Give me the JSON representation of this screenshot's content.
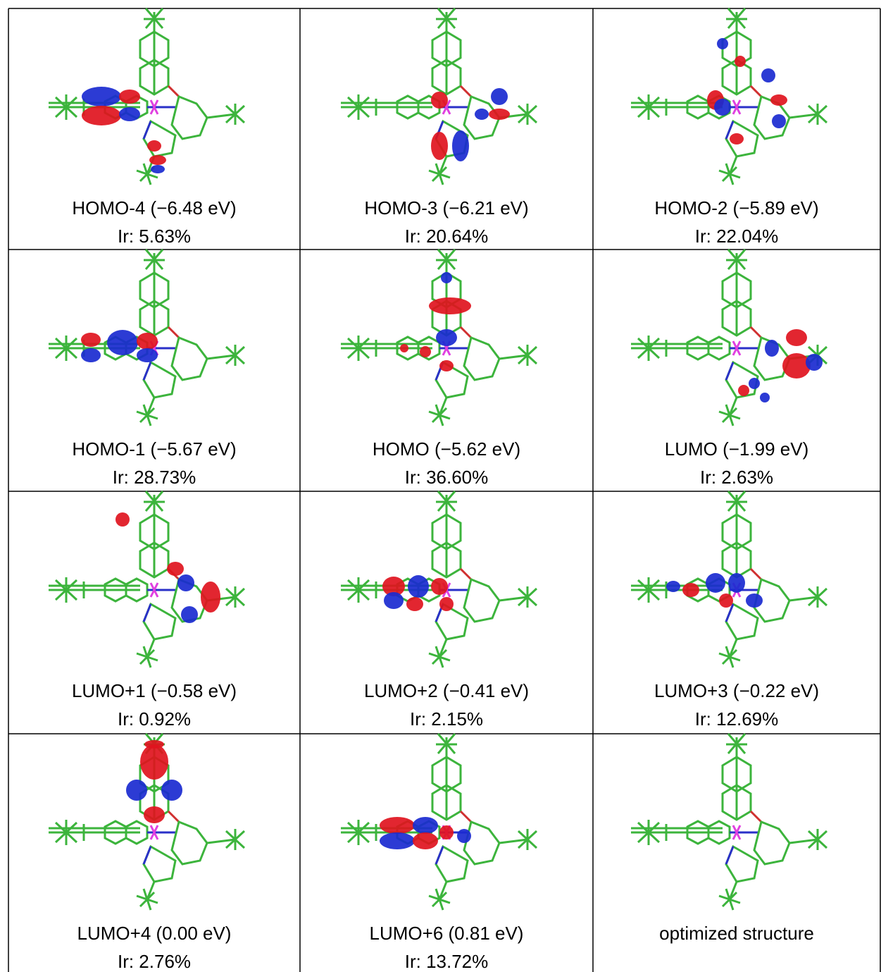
{
  "table": {
    "cells": [
      {
        "label": "HOMO-4 (−6.48 eV)",
        "ir": "Ir: 5.63%"
      },
      {
        "label": "HOMO-3 (−6.21 eV)",
        "ir": "Ir: 20.64%"
      },
      {
        "label": "HOMO-2 (−5.89 eV)",
        "ir": "Ir: 22.04%"
      },
      {
        "label": "HOMO-1 (−5.67 eV)",
        "ir": "Ir: 28.73%"
      },
      {
        "label": "HOMO (−5.62 eV)",
        "ir": "Ir: 36.60%"
      },
      {
        "label": "LUMO (−1.99 eV)",
        "ir": "Ir: 2.63%"
      },
      {
        "label": "LUMO+1 (−0.58 eV)",
        "ir": "Ir: 0.92%"
      },
      {
        "label": "LUMO+2 (−0.41 eV)",
        "ir": "Ir: 2.15%"
      },
      {
        "label": "LUMO+3 (−0.22 eV)",
        "ir": "Ir: 12.69%"
      },
      {
        "label": "LUMO+4 (0.00 eV)",
        "ir": "Ir: 2.76%"
      },
      {
        "label": "LUMO+6 (0.81 eV)",
        "ir": "Ir: 13.72%"
      },
      {
        "label": "optimized structure"
      }
    ]
  }
}
